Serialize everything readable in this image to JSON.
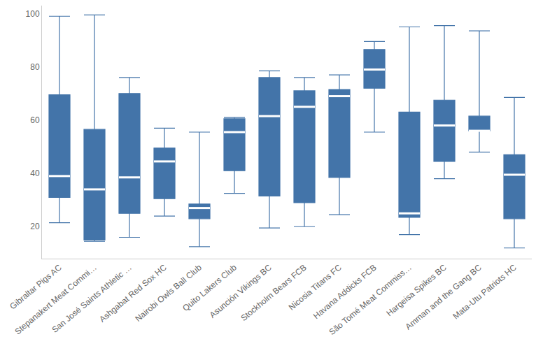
{
  "chart_data": {
    "type": "box",
    "categories": [
      "Gibraltar Pigs AC",
      "Stepanakert Meat Commi…",
      "San José Saints Athletic …",
      "Ashgabat Red Sox HC",
      "Nairobi Owls Ball Club",
      "Quito Lakers Club",
      "Asunción Vikings BC",
      "Stockholm Bears FCB",
      "Nicosia Titans FC",
      "Havana Addicks FCB",
      "São Tomé Meat Commiss…",
      "Hargeisa Spikes BC",
      "Amman and the Gang BC",
      "Mata-Utu Patriots HC"
    ],
    "min": [
      21.5,
      14.5,
      16,
      24,
      12.5,
      32.5,
      19.5,
      20,
      24.5,
      55.5,
      17,
      38,
      48,
      12
    ],
    "q1": [
      31,
      15,
      25,
      30.5,
      23,
      41,
      31.5,
      29,
      38.5,
      72,
      23.5,
      44.5,
      56,
      23
    ],
    "median": [
      39,
      34,
      38.5,
      44.5,
      27,
      55.5,
      61.5,
      65,
      69,
      79,
      25,
      58,
      56,
      39.5
    ],
    "q3": [
      69.5,
      56.5,
      70,
      49.5,
      28.5,
      60.5,
      76,
      71,
      71.5,
      86.5,
      63,
      67.5,
      61.5,
      47
    ],
    "max": [
      99,
      99.5,
      76,
      57,
      55.5,
      61,
      78.5,
      76,
      77,
      89.5,
      95,
      95.5,
      93.5,
      68.5
    ],
    "color": "#4374a9",
    "ylim": [
      8,
      103
    ],
    "yticks": [
      20,
      40,
      60,
      80,
      100
    ],
    "grid": false
  }
}
